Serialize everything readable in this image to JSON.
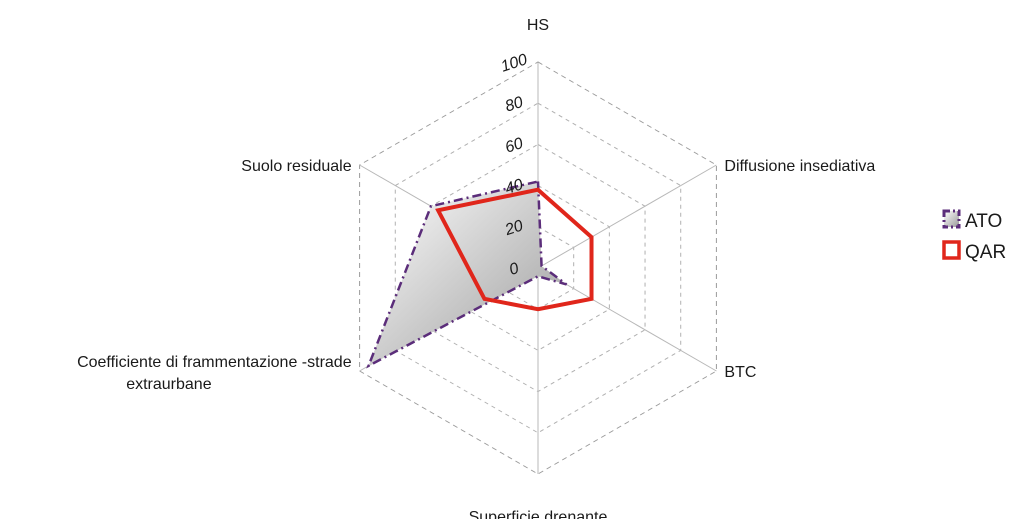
{
  "chart_data": {
    "type": "radar",
    "axes": [
      "HS",
      "Diffusione insediativa",
      "BTC",
      "Superficie drenante",
      "Coefficiente di frammentazione -strade extraurbane",
      "Suolo  residuale"
    ],
    "axis_label_lines": [
      [
        "HS"
      ],
      [
        "Diffusione insediativa"
      ],
      [
        "BTC"
      ],
      [
        "Superficie drenante"
      ],
      [
        "Coefficiente di frammentazione -strade",
        "extraurbane"
      ],
      [
        "Suolo  residuale"
      ]
    ],
    "ticks": [
      "0",
      "20",
      "40",
      "60",
      "80",
      "100"
    ],
    "tick_values": [
      0,
      20,
      40,
      60,
      80,
      100
    ],
    "range": [
      0,
      100
    ],
    "grid": true,
    "legend_position": "right",
    "series": [
      {
        "name": "ATO",
        "values": [
          42,
          2,
          16,
          4,
          95,
          60
        ],
        "line_color": "#5b2d7a",
        "fill_start": "#ffffff",
        "fill_end": "#9a9a9a",
        "style": "dash-dot"
      },
      {
        "name": "QAR",
        "values": [
          38,
          30,
          30,
          20,
          30,
          56
        ],
        "line_color": "#e0261b",
        "style": "solid"
      }
    ]
  }
}
